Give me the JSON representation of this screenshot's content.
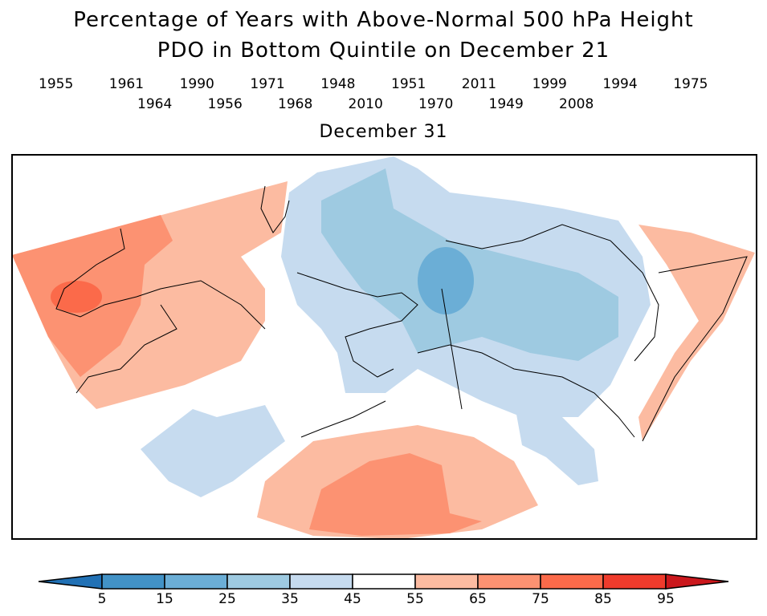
{
  "title_line1": "Percentage of Years with Above-Normal 500 hPa Height",
  "title_line2": "PDO in Bottom Quintile on December 21",
  "years_row1": [
    "1955",
    "1961",
    "1990",
    "1971",
    "1948",
    "1951",
    "2011",
    "1999",
    "1994",
    "1975"
  ],
  "years_row2": [
    "1964",
    "1956",
    "1968",
    "2010",
    "1970",
    "1949",
    "2008"
  ],
  "subtitle": "December 31",
  "colorbar": {
    "labels": [
      "5",
      "15",
      "25",
      "35",
      "45",
      "55",
      "65",
      "75",
      "85",
      "95"
    ],
    "colors": {
      "below_5": "#2171b5",
      "5_15": "#4292c6",
      "15_25": "#6baed6",
      "25_35": "#9ecae1",
      "35_45": "#c6dbef",
      "45_55": "#ffffff",
      "55_65": "#fcbba1",
      "65_75": "#fc9272",
      "75_85": "#fb6a4a",
      "85_95": "#ef3b2c",
      "above_95": "#cb181d"
    }
  }
}
